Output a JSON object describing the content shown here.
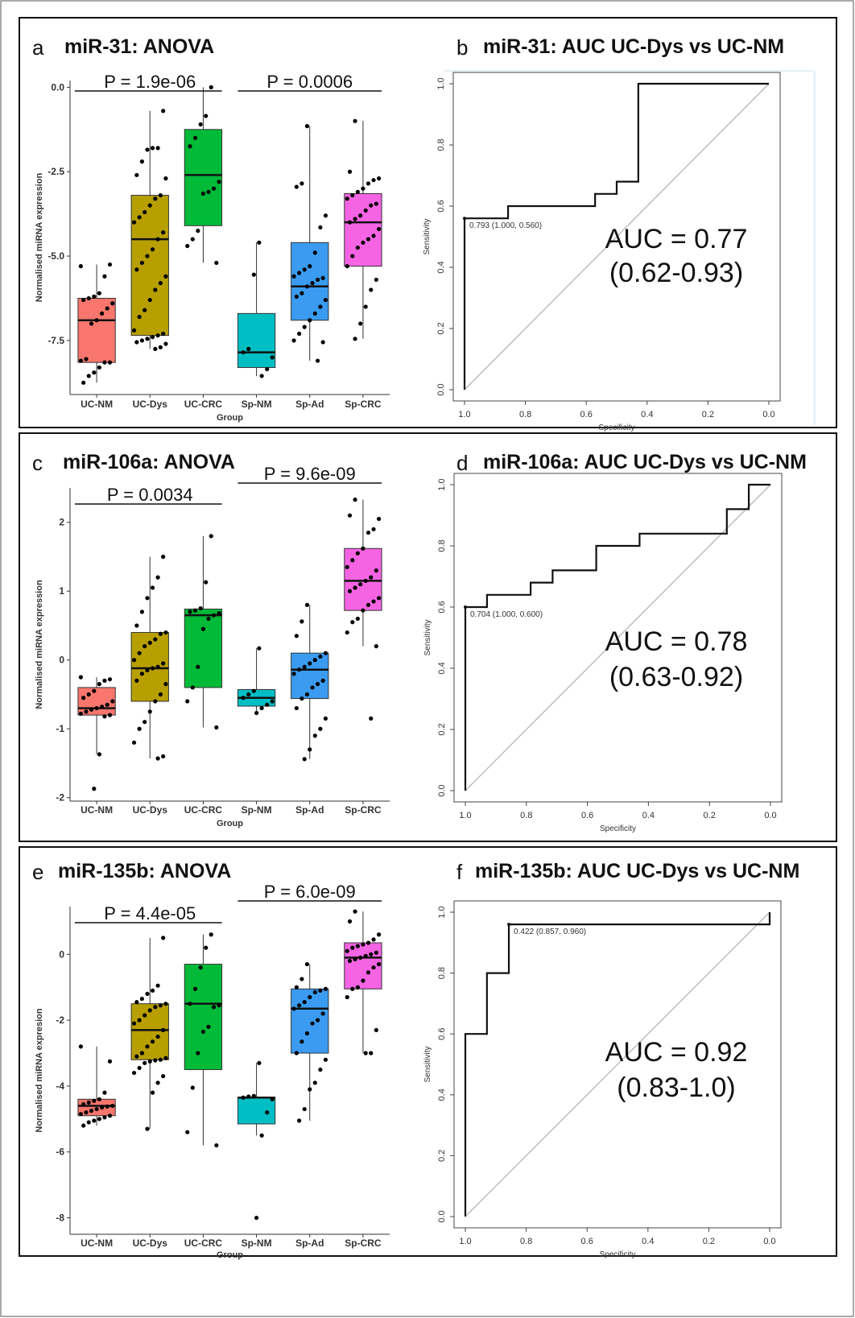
{
  "panels": [
    {
      "letter": "a",
      "title": "miR-31: ANOVA"
    },
    {
      "letter": "b",
      "title": "miR-31: AUC UC-Dys vs UC-NM"
    },
    {
      "letter": "c",
      "title": "miR-106a: ANOVA"
    },
    {
      "letter": "d",
      "title": "miR-106a: AUC UC-Dys vs UC-NM"
    },
    {
      "letter": "e",
      "title": "miR-135b: ANOVA"
    },
    {
      "letter": "f",
      "title": "miR-135b: AUC UC-Dys vs UC-NM"
    }
  ],
  "colors": {
    "UC-NM": "#f8766d",
    "UC-Dys": "#b79f00",
    "UC-CRC": "#00ba38",
    "Sp-NM": "#00bfc4",
    "Sp-Ad": "#3a9bf0",
    "Sp-CRC": "#f564e3"
  },
  "chart_data": [
    {
      "type": "box",
      "title": "miR-31: ANOVA",
      "categories": [
        "UC-NM",
        "UC-Dys",
        "UC-CRC",
        "Sp-NM",
        "Sp-Ad",
        "Sp-CRC"
      ],
      "xlabel": "Group",
      "ylabel": "Normalised miRNA expression",
      "yticks": [
        0.0,
        -2.5,
        -5.0,
        -7.5
      ],
      "ytick_labels": [
        "0.0",
        "-2.5",
        "-5.0",
        "-7.5"
      ],
      "ylim": [
        -9.1,
        0.2
      ],
      "boxes": [
        {
          "q1": -8.15,
          "median": -6.9,
          "q3": -6.25,
          "wlo": -8.75,
          "whi": -5.25
        },
        {
          "q1": -7.35,
          "median": -4.5,
          "q3": -3.2,
          "wlo": -7.75,
          "whi": -0.7
        },
        {
          "q1": -4.1,
          "median": -2.6,
          "q3": -1.25,
          "wlo": -5.2,
          "whi": 0.0
        },
        {
          "q1": -8.3,
          "median": -7.85,
          "q3": -6.7,
          "wlo": -8.55,
          "whi": -4.6
        },
        {
          "q1": -6.9,
          "median": -5.9,
          "q3": -4.6,
          "wlo": -8.1,
          "whi": -1.15
        },
        {
          "q1": -5.3,
          "median": -4.0,
          "q3": -3.15,
          "wlo": -7.45,
          "whi": -1.0
        }
      ],
      "points": [
        [
          -5.3,
          -5.25,
          -5.6,
          -6.1,
          -6.2,
          -6.25,
          -6.3,
          -6.4,
          -6.55,
          -6.7,
          -6.9,
          -7.0,
          -8.05,
          -8.1,
          -8.15,
          -8.15,
          -8.3,
          -8.45,
          -8.55,
          -8.75
        ],
        [
          -0.7,
          -1.8,
          -1.8,
          -1.85,
          -2.2,
          -2.6,
          -2.7,
          -3.2,
          -3.3,
          -3.5,
          -3.7,
          -3.85,
          -4.0,
          -4.3,
          -4.5,
          -4.8,
          -5.0,
          -5.2,
          -5.4,
          -5.6,
          -5.8,
          -6.0,
          -6.3,
          -6.6,
          -6.8,
          -7.2,
          -7.3,
          -7.35,
          -7.4,
          -7.45,
          -7.5,
          -7.55,
          -7.6,
          -7.7,
          -7.75
        ],
        [
          0.0,
          -0.85,
          -1.1,
          -1.5,
          -1.75,
          -2.8,
          -3.0,
          -3.1,
          -3.15,
          -4.25,
          -4.5,
          -4.7,
          -5.2
        ],
        [
          -4.6,
          -5.55,
          -7.75,
          -7.85,
          -8.0,
          -8.35,
          -8.55
        ],
        [
          -1.15,
          -2.85,
          -2.95,
          -3.8,
          -4.15,
          -4.9,
          -5.3,
          -5.4,
          -5.5,
          -5.6,
          -5.65,
          -5.7,
          -5.8,
          -5.9,
          -6.1,
          -6.2,
          -6.3,
          -6.5,
          -6.7,
          -6.9,
          -7.1,
          -7.3,
          -7.5,
          -7.55,
          -8.1
        ],
        [
          -1.0,
          -2.5,
          -2.7,
          -2.75,
          -2.85,
          -3.0,
          -3.1,
          -3.2,
          -3.3,
          -3.45,
          -3.5,
          -3.65,
          -3.8,
          -3.9,
          -4.0,
          -4.2,
          -4.4,
          -4.5,
          -4.6,
          -4.75,
          -5.0,
          -5.3,
          -5.7,
          -6.0,
          -6.5,
          -7.0,
          -7.45
        ]
      ],
      "comparisons": [
        {
          "label": "P = 1.9e-06",
          "from": 0,
          "to": 2
        },
        {
          "label": "P = 0.0006",
          "from": 3,
          "to": 5
        }
      ]
    },
    {
      "type": "roc",
      "title": "miR-31: AUC UC-Dys vs UC-NM",
      "xlabel": "Specificity",
      "ylabel": "Sensitivity",
      "xticks": [
        "1.0",
        "0.8",
        "0.6",
        "0.4",
        "0.2",
        "0.0"
      ],
      "yticks": [
        "0.0",
        "0.2",
        "0.4",
        "0.6",
        "0.8",
        "1.0"
      ],
      "curve": [
        [
          1.0,
          0.0
        ],
        [
          1.0,
          0.56
        ],
        [
          0.857,
          0.56
        ],
        [
          0.857,
          0.6
        ],
        [
          0.571,
          0.6
        ],
        [
          0.571,
          0.64
        ],
        [
          0.5,
          0.64
        ],
        [
          0.5,
          0.68
        ],
        [
          0.429,
          0.68
        ],
        [
          0.429,
          1.0
        ],
        [
          0.0,
          1.0
        ]
      ],
      "threshold": {
        "label": "0.793 (1.000, 0.560)",
        "sp": 1.0,
        "se": 0.56
      },
      "auc_line1": "AUC = 0.77",
      "auc_line2": "(0.62-0.93)"
    },
    {
      "type": "box",
      "title": "miR-106a: ANOVA",
      "categories": [
        "UC-NM",
        "UC-Dys",
        "UC-CRC",
        "Sp-NM",
        "Sp-Ad",
        "Sp-CRC"
      ],
      "xlabel": "Group",
      "ylabel": "Normalised miRNA expression",
      "yticks": [
        2,
        1,
        0,
        -1,
        -2
      ],
      "ytick_labels": [
        "2",
        "1",
        "0",
        "-1",
        "-2"
      ],
      "ylim": [
        -2.05,
        2.5
      ],
      "boxes": [
        {
          "q1": -0.8,
          "median": -0.7,
          "q3": -0.4,
          "wlo": -1.37,
          "whi": -0.25
        },
        {
          "q1": -0.6,
          "median": -0.12,
          "q3": 0.4,
          "wlo": -1.43,
          "whi": 1.5
        },
        {
          "q1": -0.4,
          "median": 0.65,
          "q3": 0.74,
          "wlo": -0.98,
          "whi": 1.8
        },
        {
          "q1": -0.67,
          "median": -0.55,
          "q3": -0.43,
          "wlo": -0.77,
          "whi": 0.17
        },
        {
          "q1": -0.56,
          "median": -0.14,
          "q3": 0.1,
          "wlo": -1.44,
          "whi": 0.8
        },
        {
          "q1": 0.72,
          "median": 1.15,
          "q3": 1.62,
          "wlo": 0.2,
          "whi": 2.33
        }
      ],
      "points": [
        [
          -0.25,
          -0.28,
          -0.3,
          -0.35,
          -0.45,
          -0.5,
          -0.55,
          -0.6,
          -0.65,
          -0.68,
          -0.7,
          -0.72,
          -0.75,
          -0.78,
          -0.8,
          -0.82,
          -1.37,
          -1.87
        ],
        [
          1.5,
          1.2,
          1.05,
          0.9,
          0.7,
          0.5,
          0.4,
          0.38,
          0.3,
          0.25,
          0.2,
          0.1,
          0.0,
          -0.05,
          -0.1,
          -0.12,
          -0.15,
          -0.2,
          -0.3,
          -0.35,
          -0.5,
          -0.6,
          -0.75,
          -0.9,
          -1.0,
          -1.2,
          -1.4,
          -1.43
        ],
        [
          1.8,
          1.13,
          0.75,
          0.72,
          0.7,
          0.68,
          0.65,
          0.6,
          0.45,
          -0.1,
          -0.4,
          -0.6,
          -0.98
        ],
        [
          0.17,
          -0.45,
          -0.5,
          -0.55,
          -0.6,
          -0.65,
          -0.7,
          -0.77
        ],
        [
          0.8,
          0.56,
          0.35,
          0.1,
          0.05,
          0.0,
          -0.05,
          -0.1,
          -0.14,
          -0.2,
          -0.3,
          -0.35,
          -0.4,
          -0.5,
          -0.56,
          -0.7,
          -0.85,
          -1.0,
          -1.1,
          -1.3,
          -1.44
        ],
        [
          2.33,
          2.1,
          2.05,
          1.9,
          1.85,
          1.62,
          1.55,
          1.45,
          1.35,
          1.3,
          1.2,
          1.15,
          1.1,
          1.05,
          1.0,
          0.9,
          0.85,
          0.8,
          0.72,
          0.6,
          0.55,
          0.4,
          0.2,
          -0.85
        ]
      ],
      "comparisons": [
        {
          "label": "P = 0.0034",
          "from": 0,
          "to": 2
        },
        {
          "label": "P = 9.6e-09",
          "from": 3,
          "to": 5
        }
      ]
    },
    {
      "type": "roc",
      "title": "miR-106a: AUC UC-Dys vs UC-NM",
      "xlabel": "Specificity",
      "ylabel": "Sensitivity",
      "xticks": [
        "1.0",
        "0.8",
        "0.6",
        "0.4",
        "0.2",
        "0.0"
      ],
      "yticks": [
        "0.0",
        "0.2",
        "0.4",
        "0.6",
        "0.8",
        "1.0"
      ],
      "curve": [
        [
          1.0,
          0.0
        ],
        [
          1.0,
          0.6
        ],
        [
          0.929,
          0.6
        ],
        [
          0.929,
          0.64
        ],
        [
          0.786,
          0.64
        ],
        [
          0.786,
          0.68
        ],
        [
          0.714,
          0.68
        ],
        [
          0.714,
          0.72
        ],
        [
          0.571,
          0.72
        ],
        [
          0.571,
          0.8
        ],
        [
          0.429,
          0.8
        ],
        [
          0.429,
          0.84
        ],
        [
          0.143,
          0.84
        ],
        [
          0.143,
          0.92
        ],
        [
          0.071,
          0.92
        ],
        [
          0.071,
          1.0
        ],
        [
          0.0,
          1.0
        ]
      ],
      "threshold": {
        "label": "0.704 (1.000, 0.600)",
        "sp": 1.0,
        "se": 0.6
      },
      "auc_line1": "AUC = 0.78",
      "auc_line2": "(0.63-0.92)"
    },
    {
      "type": "box",
      "title": "miR-135b: ANOVA",
      "categories": [
        "UC-NM",
        "UC-Dys",
        "UC-CRC",
        "Sp-NM",
        "Sp-Ad",
        "Sp-CRC"
      ],
      "xlabel": "Group",
      "ylabel": "Normalised miRNA expresion",
      "yticks": [
        0,
        -2,
        -4,
        -6,
        -8
      ],
      "ytick_labels": [
        "0",
        "-2",
        "-4",
        "-6",
        "-8"
      ],
      "ylim": [
        -8.5,
        1.45
      ],
      "boxes": [
        {
          "q1": -4.9,
          "median": -4.6,
          "q3": -4.4,
          "wlo": -5.2,
          "whi": -2.8
        },
        {
          "q1": -3.2,
          "median": -2.3,
          "q3": -1.5,
          "wlo": -5.3,
          "whi": 0.5
        },
        {
          "q1": -3.5,
          "median": -1.5,
          "q3": -0.3,
          "wlo": -5.8,
          "whi": 0.6
        },
        {
          "q1": -5.15,
          "median": -4.35,
          "q3": -4.35,
          "wlo": -5.5,
          "whi": -3.3
        },
        {
          "q1": -3.0,
          "median": -1.65,
          "q3": -1.05,
          "wlo": -5.05,
          "whi": -0.3
        },
        {
          "q1": -1.05,
          "median": -0.1,
          "q3": 0.35,
          "wlo": -3.0,
          "whi": 1.3
        }
      ],
      "points": [
        [
          -2.8,
          -3.25,
          -4.2,
          -4.4,
          -4.45,
          -4.5,
          -4.55,
          -4.6,
          -4.62,
          -4.65,
          -4.7,
          -4.75,
          -4.8,
          -4.85,
          -4.9,
          -4.95,
          -5.0,
          -5.05,
          -5.1,
          -5.2
        ],
        [
          0.5,
          -0.95,
          -1.1,
          -1.2,
          -1.35,
          -1.45,
          -1.5,
          -1.55,
          -1.6,
          -1.7,
          -1.85,
          -2.0,
          -2.1,
          -2.3,
          -2.5,
          -2.65,
          -2.8,
          -3.0,
          -3.1,
          -3.15,
          -3.2,
          -3.22,
          -3.25,
          -3.3,
          -3.45,
          -3.6,
          -3.7,
          -3.9,
          -4.2,
          -5.3
        ],
        [
          0.6,
          0.2,
          -0.4,
          -1.05,
          -1.5,
          -1.55,
          -1.6,
          -2.2,
          -2.35,
          -3.0,
          -4.05,
          -5.4,
          -5.8
        ],
        [
          -3.3,
          -4.3,
          -4.32,
          -4.35,
          -4.4,
          -4.8,
          -5.5,
          -8.0
        ],
        [
          -0.3,
          -0.75,
          -1.0,
          -1.05,
          -1.1,
          -1.15,
          -1.3,
          -1.45,
          -1.55,
          -1.65,
          -1.8,
          -2.0,
          -2.1,
          -2.4,
          -2.65,
          -3.0,
          -3.2,
          -3.5,
          -3.9,
          -4.1,
          -4.7,
          -5.05
        ],
        [
          1.3,
          1.0,
          0.6,
          0.45,
          0.35,
          0.3,
          0.25,
          0.2,
          0.1,
          0.05,
          0.0,
          -0.05,
          -0.1,
          -0.15,
          -0.2,
          -0.3,
          -0.4,
          -0.55,
          -0.8,
          -1.0,
          -1.05,
          -1.3,
          -2.3,
          -3.0,
          -3.0
        ]
      ],
      "comparisons": [
        {
          "label": "P = 4.4e-05",
          "from": 0,
          "to": 2
        },
        {
          "label": "P = 6.0e-09",
          "from": 3,
          "to": 5
        }
      ]
    },
    {
      "type": "roc",
      "title": "miR-135b: AUC UC-Dys vs UC-NM",
      "xlabel": "Specificity",
      "ylabel": "Sensitivity",
      "xticks": [
        "1.0",
        "0.8",
        "0.6",
        "0.4",
        "0.2",
        "0.0"
      ],
      "yticks": [
        "0.0",
        "0.2",
        "0.4",
        "0.6",
        "0.8",
        "1.0"
      ],
      "curve": [
        [
          1.0,
          0.0
        ],
        [
          1.0,
          0.6
        ],
        [
          0.929,
          0.6
        ],
        [
          0.929,
          0.8
        ],
        [
          0.857,
          0.8
        ],
        [
          0.857,
          0.96
        ],
        [
          0.0,
          0.96
        ],
        [
          0.0,
          1.0
        ]
      ],
      "threshold": {
        "label": "0.422 (0.857, 0.960)",
        "sp": 0.857,
        "se": 0.96
      },
      "auc_line1": "AUC = 0.92",
      "auc_line2": "(0.83-1.0)"
    }
  ]
}
